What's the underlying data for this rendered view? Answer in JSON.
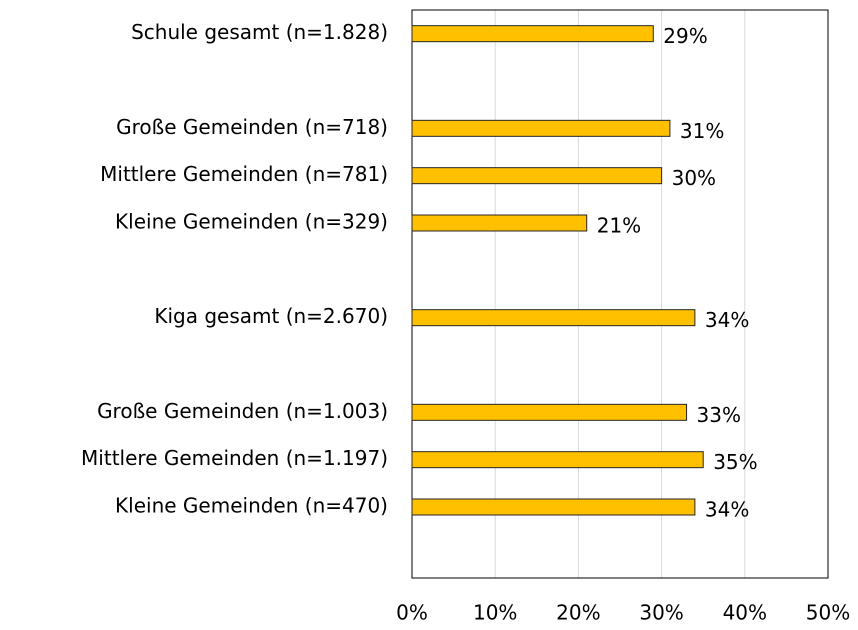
{
  "chart_data": {
    "type": "barh",
    "categories": [
      "Schule gesamt (n=1.828)",
      null,
      "Große Gemeinden (n=718)",
      "Mittlere Gemeinden (n=781)",
      "Kleine Gemeinden (n=329)",
      null,
      "Kiga gesamt (n=2.670)",
      null,
      "Große Gemeinden (n=1.003)",
      "Mittlere Gemeinden (n=1.197)",
      "Kleine Gemeinden (n=470)",
      null
    ],
    "values": [
      29,
      null,
      31,
      30,
      21,
      null,
      34,
      null,
      33,
      35,
      34,
      null
    ],
    "value_labels": [
      "29%",
      null,
      "31%",
      "30%",
      "21%",
      null,
      "34%",
      null,
      "33%",
      "35%",
      "34%",
      null
    ],
    "color": "#ffc000",
    "xlim": [
      0,
      50
    ],
    "xticks": [
      {
        "value": 0,
        "label": "0%"
      },
      {
        "value": 10,
        "label": "10%"
      },
      {
        "value": 20,
        "label": "20%"
      },
      {
        "value": 30,
        "label": "30%"
      },
      {
        "value": 40,
        "label": "40%"
      },
      {
        "value": 50,
        "label": "50%"
      }
    ],
    "grid": true
  }
}
